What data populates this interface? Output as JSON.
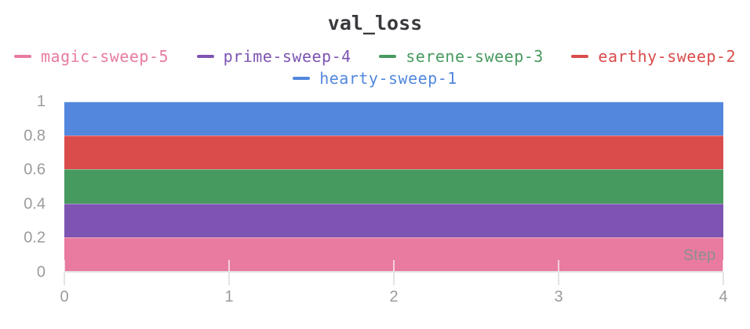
{
  "chart_data": {
    "type": "area",
    "title": "val_loss",
    "xlabel": "Step",
    "xlabel_position": "inside-bottom-right",
    "ylabel": "",
    "x": [
      0,
      1,
      2,
      3,
      4
    ],
    "xlim": [
      0,
      4
    ],
    "ylim": [
      0,
      1
    ],
    "xticks": [
      0,
      1,
      2,
      3,
      4
    ],
    "xtick_labels": [
      "0",
      "1",
      "2",
      "3",
      "4"
    ],
    "yticks": [
      0,
      0.2,
      0.4,
      0.6,
      0.8,
      1
    ],
    "ytick_labels": [
      "0",
      "0.2",
      "0.4",
      "0.6",
      "0.8",
      "1"
    ],
    "legend_position": "top",
    "grid": false,
    "series": [
      {
        "name": "magic-sweep-5",
        "color": "#E87B9F",
        "values": [
          0.2,
          0.2,
          0.2,
          0.2,
          0.2
        ]
      },
      {
        "name": "prime-sweep-4",
        "color": "#7D54B2",
        "values": [
          0.4,
          0.4,
          0.4,
          0.4,
          0.4
        ]
      },
      {
        "name": "serene-sweep-3",
        "color": "#479A5F",
        "values": [
          0.6,
          0.6,
          0.6,
          0.6,
          0.6
        ]
      },
      {
        "name": "earthy-sweep-2",
        "color": "#DA4C4C",
        "values": [
          0.8,
          0.8,
          0.8,
          0.8,
          0.8
        ]
      },
      {
        "name": "hearty-sweep-1",
        "color": "#5387DD",
        "values": [
          1.0,
          1.0,
          1.0,
          1.0,
          1.0
        ]
      }
    ],
    "colors": {
      "title": "#3a3a3e",
      "axis_label": "#9b9b9b",
      "step_label": "#8e8e93",
      "axis_line": "#e3e3e3",
      "background": "#ffffff"
    }
  }
}
